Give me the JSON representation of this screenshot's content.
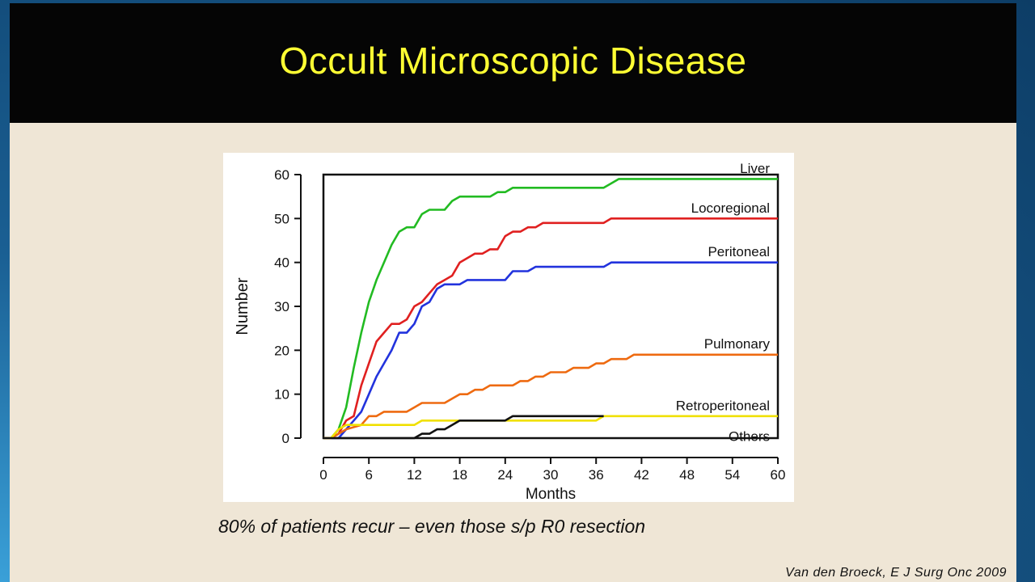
{
  "slide": {
    "title": "Occult Microscopic Disease",
    "caption": "80% of patients recur – even those s/p R0 resection",
    "citation": "Van den Broeck, E J Surg Onc 2009"
  },
  "colors": {
    "title_text": "#ffff33",
    "title_bar": "#050505",
    "slide_bg": "#efe6d6"
  },
  "chart_data": {
    "type": "line",
    "xlabel": "Months",
    "ylabel": "Number",
    "xlim": [
      0,
      60
    ],
    "ylim": [
      0,
      60
    ],
    "xticks": [
      0,
      6,
      12,
      18,
      24,
      30,
      36,
      42,
      48,
      54,
      60
    ],
    "yticks": [
      0,
      10,
      20,
      30,
      40,
      50,
      60
    ],
    "grid": false,
    "series": [
      {
        "name": "Liver",
        "color": "#22bb22",
        "points": [
          [
            0,
            0
          ],
          [
            1,
            0
          ],
          [
            2,
            2
          ],
          [
            3,
            7
          ],
          [
            4,
            16
          ],
          [
            5,
            24
          ],
          [
            6,
            31
          ],
          [
            7,
            36
          ],
          [
            8,
            40
          ],
          [
            9,
            44
          ],
          [
            10,
            47
          ],
          [
            11,
            48
          ],
          [
            12,
            48
          ],
          [
            13,
            51
          ],
          [
            14,
            52
          ],
          [
            16,
            52
          ],
          [
            17,
            54
          ],
          [
            18,
            55
          ],
          [
            20,
            55
          ],
          [
            22,
            55
          ],
          [
            23,
            56
          ],
          [
            24,
            56
          ],
          [
            25,
            57
          ],
          [
            28,
            57
          ],
          [
            30,
            57
          ],
          [
            34,
            57
          ],
          [
            37,
            57
          ],
          [
            38,
            58
          ],
          [
            39,
            59
          ],
          [
            42,
            59
          ],
          [
            60,
            59
          ]
        ]
      },
      {
        "name": "Locoregional",
        "color": "#e02020",
        "points": [
          [
            0,
            0
          ],
          [
            1,
            0
          ],
          [
            2,
            1
          ],
          [
            3,
            4
          ],
          [
            4,
            5
          ],
          [
            5,
            12
          ],
          [
            6,
            17
          ],
          [
            7,
            22
          ],
          [
            8,
            24
          ],
          [
            9,
            26
          ],
          [
            10,
            26
          ],
          [
            11,
            27
          ],
          [
            12,
            30
          ],
          [
            13,
            31
          ],
          [
            14,
            33
          ],
          [
            15,
            35
          ],
          [
            16,
            36
          ],
          [
            17,
            37
          ],
          [
            18,
            40
          ],
          [
            19,
            41
          ],
          [
            20,
            42
          ],
          [
            21,
            42
          ],
          [
            22,
            43
          ],
          [
            23,
            43
          ],
          [
            24,
            46
          ],
          [
            25,
            47
          ],
          [
            26,
            47
          ],
          [
            27,
            48
          ],
          [
            28,
            48
          ],
          [
            29,
            49
          ],
          [
            32,
            49
          ],
          [
            36,
            49
          ],
          [
            37,
            49
          ],
          [
            38,
            50
          ],
          [
            45,
            50
          ],
          [
            60,
            50
          ]
        ]
      },
      {
        "name": "Peritoneal",
        "color": "#2233dd",
        "points": [
          [
            0,
            0
          ],
          [
            2,
            0
          ],
          [
            3,
            2
          ],
          [
            4,
            4
          ],
          [
            5,
            6
          ],
          [
            6,
            10
          ],
          [
            7,
            14
          ],
          [
            8,
            17
          ],
          [
            9,
            20
          ],
          [
            10,
            24
          ],
          [
            11,
            24
          ],
          [
            12,
            26
          ],
          [
            13,
            30
          ],
          [
            14,
            31
          ],
          [
            15,
            34
          ],
          [
            16,
            35
          ],
          [
            18,
            35
          ],
          [
            19,
            36
          ],
          [
            20,
            36
          ],
          [
            24,
            36
          ],
          [
            25,
            38
          ],
          [
            27,
            38
          ],
          [
            28,
            39
          ],
          [
            32,
            39
          ],
          [
            37,
            39
          ],
          [
            38,
            40
          ],
          [
            42,
            40
          ],
          [
            60,
            40
          ]
        ]
      },
      {
        "name": "Pulmonary",
        "color": "#ee6a10",
        "points": [
          [
            0,
            0
          ],
          [
            1,
            0
          ],
          [
            2,
            1
          ],
          [
            3,
            2
          ],
          [
            5,
            3
          ],
          [
            6,
            5
          ],
          [
            7,
            5
          ],
          [
            8,
            6
          ],
          [
            10,
            6
          ],
          [
            11,
            6
          ],
          [
            12,
            7
          ],
          [
            13,
            8
          ],
          [
            15,
            8
          ],
          [
            16,
            8
          ],
          [
            17,
            9
          ],
          [
            18,
            10
          ],
          [
            19,
            10
          ],
          [
            20,
            11
          ],
          [
            21,
            11
          ],
          [
            22,
            12
          ],
          [
            25,
            12
          ],
          [
            26,
            13
          ],
          [
            27,
            13
          ],
          [
            28,
            14
          ],
          [
            29,
            14
          ],
          [
            30,
            15
          ],
          [
            32,
            15
          ],
          [
            33,
            16
          ],
          [
            35,
            16
          ],
          [
            36,
            17
          ],
          [
            37,
            17
          ],
          [
            38,
            18
          ],
          [
            40,
            18
          ],
          [
            41,
            19
          ],
          [
            45,
            19
          ],
          [
            60,
            19
          ]
        ]
      },
      {
        "name": "Retroperitoneal",
        "color": "#f0e000",
        "points": [
          [
            0,
            0
          ],
          [
            1,
            0
          ],
          [
            2,
            2
          ],
          [
            3,
            3
          ],
          [
            8,
            3
          ],
          [
            11,
            3
          ],
          [
            12,
            3
          ],
          [
            13,
            4
          ],
          [
            20,
            4
          ],
          [
            24,
            4
          ],
          [
            36,
            4
          ],
          [
            37,
            5
          ],
          [
            45,
            5
          ],
          [
            60,
            5
          ]
        ]
      },
      {
        "name": "Others",
        "color": "#111111",
        "points": [
          [
            0,
            0
          ],
          [
            12,
            0
          ],
          [
            13,
            1
          ],
          [
            14,
            1
          ],
          [
            15,
            2
          ],
          [
            16,
            2
          ],
          [
            17,
            3
          ],
          [
            18,
            4
          ],
          [
            24,
            4
          ],
          [
            25,
            5
          ],
          [
            30,
            5
          ],
          [
            35,
            5
          ],
          [
            37,
            5
          ]
        ]
      }
    ]
  }
}
